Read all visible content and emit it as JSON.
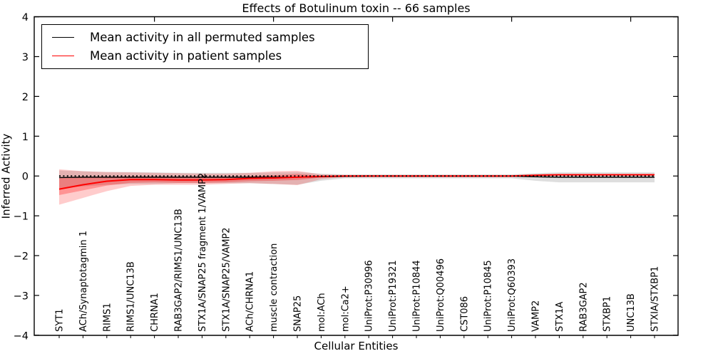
{
  "title": "Effects of Botulinum toxin -- 66 samples",
  "legend": {
    "items": [
      {
        "label": "Mean activity in all permuted samples",
        "color": "#000000"
      },
      {
        "label": "Mean activity in patient samples",
        "color": "#ff0000"
      }
    ]
  },
  "colors": {
    "patient_line": "#ff0000",
    "permuted_line": "#000000",
    "permuted_band": "#000000",
    "patient_band": "#ff0000",
    "frame": "#000000"
  },
  "chart_data": {
    "type": "line",
    "title": "Effects of Botulinum toxin -- 66 samples",
    "xlabel": "Cellular Entities",
    "ylabel": "Inferred Activity",
    "ylim": [
      -4,
      4
    ],
    "yticks": [
      "4",
      "3",
      "2",
      "1",
      "0",
      "−1",
      "−2",
      "−3",
      "−4"
    ],
    "x_top_tick_indices": [
      4,
      9,
      14,
      19,
      24
    ],
    "grid": false,
    "legend_position": "upper left",
    "categories": [
      "SYT1",
      "ACh/Synaptotagmin 1",
      "RIMS1",
      "RIMS1/UNC13B",
      "CHRNA1",
      "RAB3GAP2/RIMS1/UNC13B",
      "STX1A/SNAP25 fragment 1/VAMP2",
      "STX1A/SNAP25/VAMP2",
      "ACh/CHRNA1",
      "muscle contraction",
      "SNAP25",
      "mol:ACh",
      "mol:Ca2+",
      "UniProt:P30996",
      "UniProt:P19321",
      "UniProt:P10844",
      "UniProt:Q00496",
      "CST086",
      "UniProt:P10845",
      "UniProt:Q60393",
      "VAMP2",
      "STX1A",
      "RAB3GAP2",
      "STXBP1",
      "UNC13B",
      "STXIA/STXBP1"
    ],
    "series": [
      {
        "name": "Mean activity in all permuted samples",
        "color": "#000000",
        "style": "solid",
        "width": 1.4,
        "values": [
          -0.04,
          -0.03,
          -0.03,
          -0.03,
          -0.03,
          -0.03,
          -0.03,
          -0.03,
          -0.03,
          -0.03,
          -0.03,
          -0.02,
          -0.01,
          -0.005,
          -0.005,
          -0.005,
          -0.005,
          -0.005,
          -0.005,
          -0.005,
          -0.02,
          -0.03,
          -0.03,
          -0.03,
          -0.03,
          -0.03
        ]
      },
      {
        "name": "Mean activity in patient samples",
        "color": "#ff0000",
        "style": "solid",
        "width": 2,
        "values": [
          -0.33,
          -0.22,
          -0.13,
          -0.09,
          -0.09,
          -0.1,
          -0.1,
          -0.09,
          -0.06,
          -0.05,
          -0.03,
          -0.01,
          0,
          0,
          0,
          0,
          0,
          0,
          0,
          0,
          0.02,
          0.03,
          0.03,
          0.03,
          0.03,
          0.03
        ]
      },
      {
        "name": "zero reference",
        "color": "#000000",
        "style": "dotted",
        "width": 1.8,
        "values": [
          0,
          0,
          0,
          0,
          0,
          0,
          0,
          0,
          0,
          0,
          0,
          0,
          0,
          0,
          0,
          0,
          0,
          0,
          0,
          0,
          0,
          0,
          0,
          0,
          0,
          0
        ]
      }
    ],
    "bands": [
      {
        "name": "permuted samples range",
        "color": "#000000",
        "opacity": 0.13,
        "high": [
          0.14,
          0.12,
          0.1,
          0.1,
          0.09,
          0.08,
          0.08,
          0.08,
          0.08,
          0.09,
          0.1,
          0.06,
          0.04,
          0.04,
          0.04,
          0.04,
          0.04,
          0.04,
          0.04,
          0.04,
          0.07,
          0.09,
          0.09,
          0.09,
          0.09,
          0.09
        ],
        "low": [
          -0.3,
          -0.26,
          -0.22,
          -0.2,
          -0.2,
          -0.18,
          -0.18,
          -0.18,
          -0.18,
          -0.2,
          -0.22,
          -0.12,
          -0.06,
          -0.06,
          -0.06,
          -0.06,
          -0.06,
          -0.06,
          -0.06,
          -0.06,
          -0.12,
          -0.16,
          -0.16,
          -0.16,
          -0.16,
          -0.16
        ]
      },
      {
        "name": "patient samples outer range",
        "color": "#ff0000",
        "opacity": 0.2,
        "high": [
          0.17,
          0.12,
          0.1,
          0.09,
          0.08,
          0.07,
          0.06,
          0.06,
          0.08,
          0.12,
          0.13,
          0.04,
          0.025,
          0.025,
          0.025,
          0.025,
          0.025,
          0.025,
          0.025,
          0.025,
          0.04,
          0.05,
          0.05,
          0.05,
          0.05,
          0.05
        ],
        "low": [
          -0.72,
          -0.55,
          -0.38,
          -0.25,
          -0.22,
          -0.22,
          -0.22,
          -0.2,
          -0.18,
          -0.2,
          -0.23,
          -0.08,
          -0.025,
          -0.025,
          -0.025,
          -0.025,
          -0.025,
          -0.025,
          -0.025,
          -0.025,
          -0.01,
          0.01,
          0.01,
          0.01,
          0.01,
          0.01
        ]
      },
      {
        "name": "patient samples inner range",
        "color": "#ff0000",
        "opacity": 0.28,
        "high": [
          -0.04,
          -0.03,
          -0.02,
          -0.01,
          -0.01,
          -0.02,
          -0.02,
          -0.02,
          -0.01,
          0.02,
          0.05,
          0.01,
          0.01,
          0.01,
          0.01,
          0.01,
          0.01,
          0.01,
          0.01,
          0.01,
          0.03,
          0.045,
          0.045,
          0.045,
          0.045,
          0.045
        ],
        "low": [
          -0.48,
          -0.36,
          -0.24,
          -0.17,
          -0.16,
          -0.17,
          -0.17,
          -0.16,
          -0.13,
          -0.12,
          -0.1,
          -0.04,
          -0.01,
          -0.01,
          -0.01,
          -0.01,
          -0.01,
          -0.01,
          -0.01,
          -0.01,
          0.005,
          0.015,
          0.015,
          0.015,
          0.015,
          0.015
        ]
      }
    ]
  }
}
